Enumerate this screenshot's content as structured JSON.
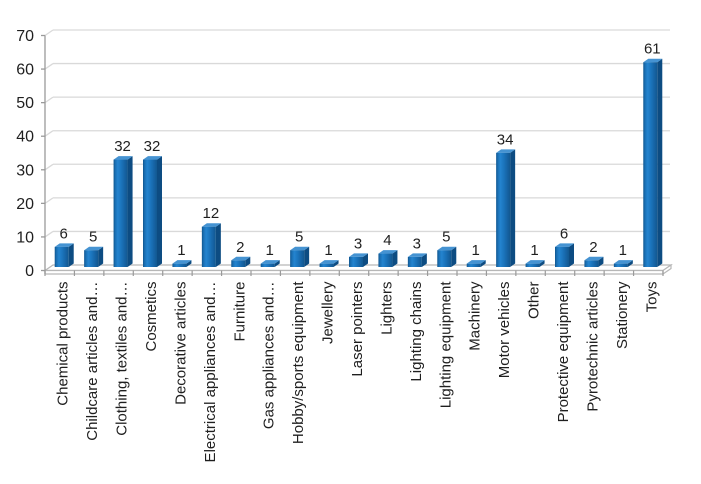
{
  "chart_data": {
    "type": "bar",
    "title": "",
    "xlabel": "",
    "ylabel": "",
    "legend": false,
    "grid": true,
    "style": "3d-column",
    "ylim": [
      0,
      70
    ],
    "yticks": [
      0,
      10,
      20,
      30,
      40,
      50,
      60,
      70
    ],
    "categories": [
      "Chemical products",
      "Childcare articles and…",
      "Clothing, textiles and…",
      "Cosmetics",
      "Decorative articles",
      "Electrical appliances and…",
      "Furniture",
      "Gas appliances and…",
      "Hobby/sports equipment",
      "Jewellery",
      "Laser pointers",
      "Lighters",
      "Lighting chains",
      "Lighting equipment",
      "Machinery",
      "Motor vehicles",
      "Other",
      "Protective equipment",
      "Pyrotechnic articles",
      "Stationery",
      "Toys"
    ],
    "values": [
      6,
      5,
      32,
      32,
      1,
      12,
      2,
      1,
      5,
      1,
      3,
      4,
      3,
      5,
      1,
      34,
      1,
      6,
      2,
      1,
      61
    ],
    "colors": {
      "bar_main": "#1b74bc",
      "bar_dark": "#0f558e",
      "bar_bright": "#2484cf",
      "bar_top": "#4593d2",
      "bar_side": "#0d4c82",
      "gridline": "#d9d9d9",
      "axis": "#9a9a9a",
      "floor_edge": "#b7b7b7",
      "text": "#1f1f1f",
      "background": "#ffffff"
    }
  }
}
